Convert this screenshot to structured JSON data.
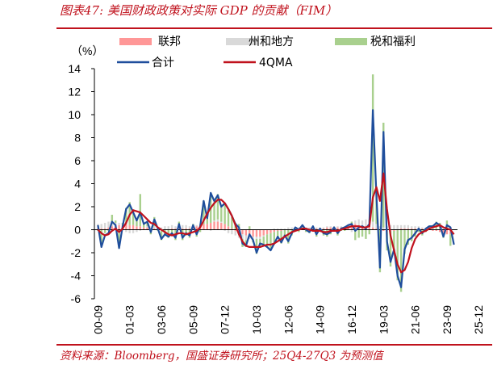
{
  "header": {
    "title": "图表47:  美国财政政策对实际 GDP 的贡献（FIM）"
  },
  "footer": {
    "source": "资料来源：Bloomberg，国盛证券研究所；25Q4-27Q3 为预测值"
  },
  "chart_data": {
    "type": "bar",
    "ylabel": "（%）",
    "ylim": [
      -6,
      14
    ],
    "yticks": [
      14,
      12,
      10,
      8,
      6,
      4,
      2,
      0,
      -2,
      -4,
      -6
    ],
    "xticks": [
      "00-09",
      "01-03",
      "03-06",
      "05-09",
      "07-12",
      "10-03",
      "12-06",
      "14-09",
      "16-12",
      "19-03",
      "21-06",
      "23-09",
      "25-12"
    ],
    "legend": [
      "联邦",
      "州和地方",
      "税和福利",
      "合计",
      "4QMA"
    ],
    "colors": {
      "federal": "#ff9797",
      "state": "#d9d9d9",
      "tax": "#a9d08e",
      "total": "#1f4e9c",
      "ma": "#c0121d"
    },
    "series": [
      {
        "name": "合计",
        "points": [
          [
            2000.75,
            0.4
          ],
          [
            2001.0,
            -1.5
          ],
          [
            2001.25,
            -0.5
          ],
          [
            2001.5,
            -0.3
          ],
          [
            2001.75,
            0.7
          ],
          [
            2002.0,
            0.4
          ],
          [
            2002.25,
            -1.6
          ],
          [
            2002.5,
            0.3
          ],
          [
            2002.75,
            1.8
          ],
          [
            2003.0,
            2.2
          ],
          [
            2003.25,
            1.5
          ],
          [
            2003.5,
            0.8
          ],
          [
            2003.75,
            1.5
          ],
          [
            2004.0,
            0.5
          ],
          [
            2004.25,
            0.7
          ],
          [
            2004.5,
            -0.2
          ],
          [
            2004.75,
            0.9
          ],
          [
            2005.0,
            0.1
          ],
          [
            2005.25,
            -0.8
          ],
          [
            2005.5,
            -0.4
          ],
          [
            2005.75,
            -0.6
          ],
          [
            2006.0,
            -0.3
          ],
          [
            2006.25,
            -0.7
          ],
          [
            2006.5,
            0.5
          ],
          [
            2006.75,
            -0.7
          ],
          [
            2007.0,
            -0.3
          ],
          [
            2007.25,
            -0.5
          ],
          [
            2007.5,
            0.4
          ],
          [
            2007.75,
            -0.4
          ],
          [
            2008.0,
            0.3
          ],
          [
            2008.25,
            2.5
          ],
          [
            2008.5,
            1.0
          ],
          [
            2008.75,
            3.2
          ],
          [
            2009.0,
            2.5
          ],
          [
            2009.25,
            3.0
          ],
          [
            2009.5,
            2.0
          ],
          [
            2009.75,
            2.3
          ],
          [
            2010.0,
            1.8
          ],
          [
            2010.25,
            1.2
          ],
          [
            2010.5,
            0.5
          ],
          [
            2010.75,
            0.2
          ],
          [
            2011.0,
            -1.2
          ],
          [
            2011.25,
            -1.4
          ],
          [
            2011.5,
            -0.4
          ],
          [
            2011.75,
            -0.9
          ],
          [
            2012.0,
            -2.0
          ],
          [
            2012.25,
            -1.2
          ],
          [
            2012.5,
            -1.3
          ],
          [
            2012.75,
            -1.5
          ],
          [
            2013.0,
            -1.8
          ],
          [
            2013.25,
            -1.2
          ],
          [
            2013.5,
            -0.6
          ],
          [
            2013.75,
            -1.1
          ],
          [
            2014.0,
            -0.5
          ],
          [
            2014.25,
            -1.0
          ],
          [
            2014.5,
            -0.3
          ],
          [
            2014.75,
            0.2
          ],
          [
            2015.0,
            0.0
          ],
          [
            2015.25,
            0.4
          ],
          [
            2015.5,
            0.0
          ],
          [
            2015.75,
            -0.2
          ],
          [
            2016.0,
            0.3
          ],
          [
            2016.25,
            -0.4
          ],
          [
            2016.5,
            0.1
          ],
          [
            2016.75,
            -0.3
          ],
          [
            2017.0,
            -0.4
          ],
          [
            2017.25,
            -0.2
          ],
          [
            2017.5,
            0.2
          ],
          [
            2017.75,
            -0.3
          ],
          [
            2018.0,
            0.1
          ],
          [
            2018.25,
            0.2
          ],
          [
            2018.5,
            0.4
          ],
          [
            2018.75,
            0.5
          ],
          [
            2019.0,
            -0.1
          ],
          [
            2019.25,
            0.2
          ],
          [
            2019.5,
            0.3
          ],
          [
            2019.75,
            0.1
          ],
          [
            2020.0,
            0.5
          ],
          [
            2020.25,
            10.4
          ],
          [
            2020.5,
            3.0
          ],
          [
            2020.75,
            -3.3
          ],
          [
            2021.0,
            8.5
          ],
          [
            2021.25,
            -1.0
          ],
          [
            2021.5,
            -2.8
          ],
          [
            2021.75,
            -1.7
          ],
          [
            2022.0,
            -4.0
          ],
          [
            2022.25,
            -5.0
          ],
          [
            2022.5,
            -1.7
          ],
          [
            2022.75,
            -0.9
          ],
          [
            2023.0,
            -0.7
          ],
          [
            2023.25,
            -0.3
          ],
          [
            2023.5,
            0.1
          ],
          [
            2023.75,
            -0.3
          ],
          [
            2024.0,
            0.1
          ],
          [
            2024.25,
            0.3
          ],
          [
            2024.5,
            0.3
          ],
          [
            2024.75,
            0.6
          ],
          [
            2025.0,
            0.4
          ],
          [
            2025.25,
            -0.6
          ],
          [
            2025.5,
            0.4
          ],
          [
            2025.75,
            0.2
          ],
          [
            2026.0,
            -1.3
          ]
        ]
      },
      {
        "name": "4QMA",
        "points": [
          [
            2000.75,
            0.0
          ],
          [
            2001.0,
            -0.3
          ],
          [
            2001.25,
            -0.5
          ],
          [
            2001.5,
            -0.4
          ],
          [
            2001.75,
            -0.1
          ],
          [
            2002.0,
            0.1
          ],
          [
            2002.25,
            -0.2
          ],
          [
            2002.5,
            0.1
          ],
          [
            2002.75,
            0.6
          ],
          [
            2003.0,
            1.3
          ],
          [
            2003.25,
            1.7
          ],
          [
            2003.5,
            1.6
          ],
          [
            2003.75,
            1.5
          ],
          [
            2004.0,
            1.2
          ],
          [
            2004.25,
            0.9
          ],
          [
            2004.5,
            0.6
          ],
          [
            2004.75,
            0.5
          ],
          [
            2005.0,
            0.2
          ],
          [
            2005.25,
            0.0
          ],
          [
            2005.5,
            -0.2
          ],
          [
            2005.75,
            -0.4
          ],
          [
            2006.0,
            -0.5
          ],
          [
            2006.25,
            -0.4
          ],
          [
            2006.5,
            -0.3
          ],
          [
            2006.75,
            -0.3
          ],
          [
            2007.0,
            -0.4
          ],
          [
            2007.25,
            -0.3
          ],
          [
            2007.5,
            -0.2
          ],
          [
            2007.75,
            -0.1
          ],
          [
            2008.0,
            0.2
          ],
          [
            2008.25,
            0.8
          ],
          [
            2008.5,
            1.4
          ],
          [
            2008.75,
            1.9
          ],
          [
            2009.0,
            2.3
          ],
          [
            2009.25,
            2.6
          ],
          [
            2009.5,
            2.6
          ],
          [
            2009.75,
            2.3
          ],
          [
            2010.0,
            1.8
          ],
          [
            2010.25,
            1.2
          ],
          [
            2010.5,
            0.4
          ],
          [
            2010.75,
            -0.4
          ],
          [
            2011.0,
            -1.0
          ],
          [
            2011.25,
            -1.4
          ],
          [
            2011.5,
            -1.5
          ],
          [
            2011.75,
            -1.5
          ],
          [
            2012.0,
            -1.5
          ],
          [
            2012.25,
            -1.5
          ],
          [
            2012.5,
            -1.4
          ],
          [
            2012.75,
            -1.3
          ],
          [
            2013.0,
            -1.3
          ],
          [
            2013.25,
            -1.2
          ],
          [
            2013.5,
            -1.0
          ],
          [
            2013.75,
            -0.8
          ],
          [
            2014.0,
            -0.6
          ],
          [
            2014.25,
            -0.4
          ],
          [
            2014.5,
            -0.2
          ],
          [
            2014.75,
            -0.1
          ],
          [
            2015.0,
            0.0
          ],
          [
            2015.25,
            0.1
          ],
          [
            2015.5,
            0.1
          ],
          [
            2015.75,
            0.0
          ],
          [
            2016.0,
            -0.1
          ],
          [
            2016.25,
            -0.1
          ],
          [
            2016.5,
            -0.1
          ],
          [
            2016.75,
            -0.2
          ],
          [
            2017.0,
            -0.2
          ],
          [
            2017.25,
            -0.1
          ],
          [
            2017.5,
            -0.1
          ],
          [
            2017.75,
            -0.1
          ],
          [
            2018.0,
            0.0
          ],
          [
            2018.25,
            0.1
          ],
          [
            2018.5,
            0.2
          ],
          [
            2018.75,
            0.3
          ],
          [
            2019.0,
            0.3
          ],
          [
            2019.25,
            0.3
          ],
          [
            2019.5,
            0.2
          ],
          [
            2019.75,
            0.2
          ],
          [
            2020.0,
            0.3
          ],
          [
            2020.25,
            2.8
          ],
          [
            2020.5,
            3.7
          ],
          [
            2020.75,
            2.5
          ],
          [
            2021.0,
            4.9
          ],
          [
            2021.25,
            1.8
          ],
          [
            2021.5,
            -0.5
          ],
          [
            2021.75,
            -1.8
          ],
          [
            2022.0,
            -3.0
          ],
          [
            2022.25,
            -3.7
          ],
          [
            2022.5,
            -3.5
          ],
          [
            2022.75,
            -2.8
          ],
          [
            2023.0,
            -1.6
          ],
          [
            2023.25,
            -0.8
          ],
          [
            2023.5,
            -0.4
          ],
          [
            2023.75,
            -0.2
          ],
          [
            2024.0,
            -0.1
          ],
          [
            2024.25,
            0.1
          ],
          [
            2024.5,
            0.2
          ],
          [
            2024.75,
            0.3
          ],
          [
            2025.0,
            0.4
          ],
          [
            2025.25,
            0.2
          ],
          [
            2025.5,
            0.1
          ],
          [
            2025.75,
            0.0
          ],
          [
            2026.0,
            -0.4
          ]
        ]
      },
      {
        "name": "联邦",
        "values": [
          0.1,
          0.1,
          0.1,
          0.2,
          0.3,
          0.3,
          0.4,
          0.4,
          0.5,
          0.4,
          0.4,
          0.3,
          0.3,
          0.2,
          0.2,
          0.1,
          0.1,
          0.0,
          -0.1,
          0.0,
          0.0,
          0.1,
          0.1,
          0.1,
          0.1,
          0.1,
          0.1,
          0.2,
          0.3,
          0.4,
          0.5,
          0.5,
          0.6,
          0.7,
          0.7,
          0.6,
          0.5,
          0.3,
          0.1,
          -0.1,
          -0.3,
          -0.4,
          -0.5,
          -0.5,
          -0.6,
          -0.6,
          -0.6,
          -0.5,
          -0.4,
          -0.3,
          -0.2,
          -0.1,
          -0.1,
          0.0,
          0.0,
          0.0,
          0.0,
          0.0,
          0.1,
          0.1,
          0.1,
          0.1,
          0.1,
          0.1,
          0.1,
          0.2,
          0.2,
          0.2,
          0.2,
          0.2,
          0.2,
          0.3,
          0.5,
          0.5,
          0.4,
          0.3,
          0.3,
          0.3,
          0.2,
          0.1,
          0.0,
          -0.1,
          -0.2,
          -0.1,
          -0.1,
          0.0,
          0.1,
          0.1,
          0.1,
          0.1,
          0.1,
          0.1,
          0.1,
          0.0,
          0.0,
          -0.1,
          -0.1,
          -0.2,
          -0.3,
          -0.4,
          -0.4
        ]
      },
      {
        "name": "州和地方",
        "values": [
          0.4,
          0.4,
          0.5,
          0.5,
          0.4,
          0.3,
          0.2,
          0.0,
          -0.2,
          -0.3,
          -0.3,
          -0.2,
          -0.1,
          0.0,
          0.1,
          0.2,
          0.2,
          0.2,
          0.2,
          0.3,
          0.3,
          0.3,
          0.2,
          0.3,
          0.3,
          0.3,
          0.2,
          0.2,
          0.1,
          0.1,
          0.0,
          0.0,
          -0.1,
          0.1,
          0.2,
          0.1,
          -0.1,
          -0.3,
          -0.4,
          -0.4,
          -0.4,
          -0.4,
          -0.4,
          -0.3,
          -0.3,
          -0.2,
          -0.2,
          -0.1,
          0.0,
          0.0,
          0.1,
          0.1,
          0.1,
          0.1,
          0.2,
          0.2,
          0.2,
          0.2,
          0.1,
          0.1,
          0.1,
          0.1,
          0.1,
          0.1,
          0.1,
          0.1,
          0.1,
          0.1,
          0.1,
          0.1,
          0.1,
          0.0,
          -0.2,
          0.3,
          0.5,
          0.5,
          0.6,
          0.6,
          0.5,
          0.4,
          0.3,
          0.2,
          0.3,
          0.4,
          0.4,
          0.4,
          0.3,
          0.3,
          0.3,
          0.2,
          0.2,
          0.2,
          0.1,
          0.1,
          0.1,
          0.1,
          0.1,
          0.1,
          0.1,
          0.1,
          0.1
        ]
      },
      {
        "name": "税和福利",
        "values": [
          -0.1,
          -1.4,
          -0.3,
          -0.1,
          0.6,
          0.2,
          -1.6,
          0.2,
          1.4,
          2.0,
          1.2,
          0.6,
          2.8,
          0.3,
          0.4,
          -0.4,
          0.8,
          -0.1,
          -0.8,
          -0.5,
          -0.7,
          -0.4,
          -0.9,
          0.3,
          -0.9,
          -0.5,
          -0.7,
          0.1,
          -0.6,
          -0.2,
          2.0,
          0.5,
          2.6,
          1.6,
          2.2,
          1.3,
          1.7,
          1.4,
          1.0,
          0.6,
          0.5,
          -0.7,
          -0.6,
          0.3,
          -0.2,
          -1.3,
          -0.6,
          -0.8,
          -1.1,
          -1.5,
          -1.1,
          -0.6,
          -1.1,
          -0.6,
          -1.2,
          -0.5,
          0.0,
          -0.2,
          0.2,
          -0.2,
          -0.3,
          0.1,
          -0.6,
          -0.1,
          -0.5,
          -0.6,
          -0.4,
          -0.1,
          -0.5,
          -0.1,
          -0.1,
          0.1,
          0.2,
          -0.9,
          -0.7,
          -0.6,
          -0.8,
          -0.4,
          12.8,
          2.5,
          -3.7,
          9.1,
          -1.6,
          -3.1,
          -2.0,
          -4.4,
          -5.4,
          -2.1,
          -1.3,
          -1.0,
          -0.6,
          -0.2,
          -0.5,
          -0.2,
          0.2,
          0.3,
          0.6,
          0.5,
          -0.4,
          0.7,
          -1.0
        ]
      }
    ]
  }
}
